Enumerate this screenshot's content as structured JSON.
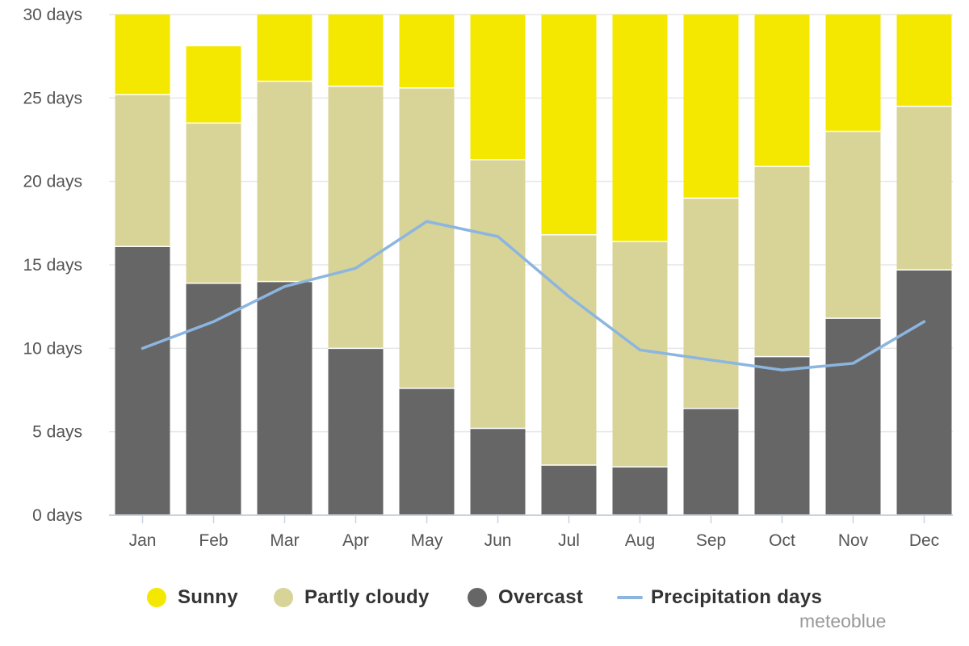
{
  "chart_data": {
    "type": "bar",
    "stacked": true,
    "categories": [
      "Jan",
      "Feb",
      "Mar",
      "Apr",
      "May",
      "Jun",
      "Jul",
      "Aug",
      "Sep",
      "Oct",
      "Nov",
      "Dec"
    ],
    "series": [
      {
        "name": "Overcast",
        "color": "#666666",
        "values": [
          16.1,
          13.9,
          14.0,
          10.0,
          7.6,
          5.2,
          3.0,
          2.9,
          6.4,
          9.5,
          11.8,
          14.7
        ]
      },
      {
        "name": "Partly cloudy",
        "color": "#d8d497",
        "values": [
          9.1,
          9.6,
          12.0,
          15.7,
          18.0,
          16.1,
          13.8,
          13.5,
          12.6,
          11.4,
          11.2,
          9.8
        ]
      },
      {
        "name": "Sunny",
        "color": "#f4e800",
        "values": [
          4.8,
          4.6,
          4.0,
          4.3,
          4.4,
          8.7,
          13.2,
          13.6,
          11.0,
          9.1,
          7.0,
          5.5
        ]
      }
    ],
    "line_series": {
      "name": "Precipitation days",
      "color": "#8cb5e0",
      "values": [
        10.0,
        11.6,
        13.7,
        14.8,
        17.6,
        16.7,
        13.1,
        9.9,
        9.3,
        8.7,
        9.1,
        11.6
      ]
    },
    "ylim": [
      0,
      30
    ],
    "yticks": [
      0,
      5,
      10,
      15,
      20,
      25,
      30
    ],
    "ytick_labels": [
      "0 days",
      "5 days",
      "10 days",
      "15 days",
      "20 days",
      "25 days",
      "30 days"
    ],
    "grid": true,
    "legend_position": "bottom"
  },
  "legend": {
    "sunny": {
      "label": "Sunny",
      "color": "#f4e800"
    },
    "partly_cloudy": {
      "label": "Partly cloudy",
      "color": "#d8d497"
    },
    "overcast": {
      "label": "Overcast",
      "color": "#666666"
    },
    "precipitation": {
      "label": "Precipitation days",
      "color": "#8cb5e0"
    }
  },
  "credit": "meteoblue"
}
